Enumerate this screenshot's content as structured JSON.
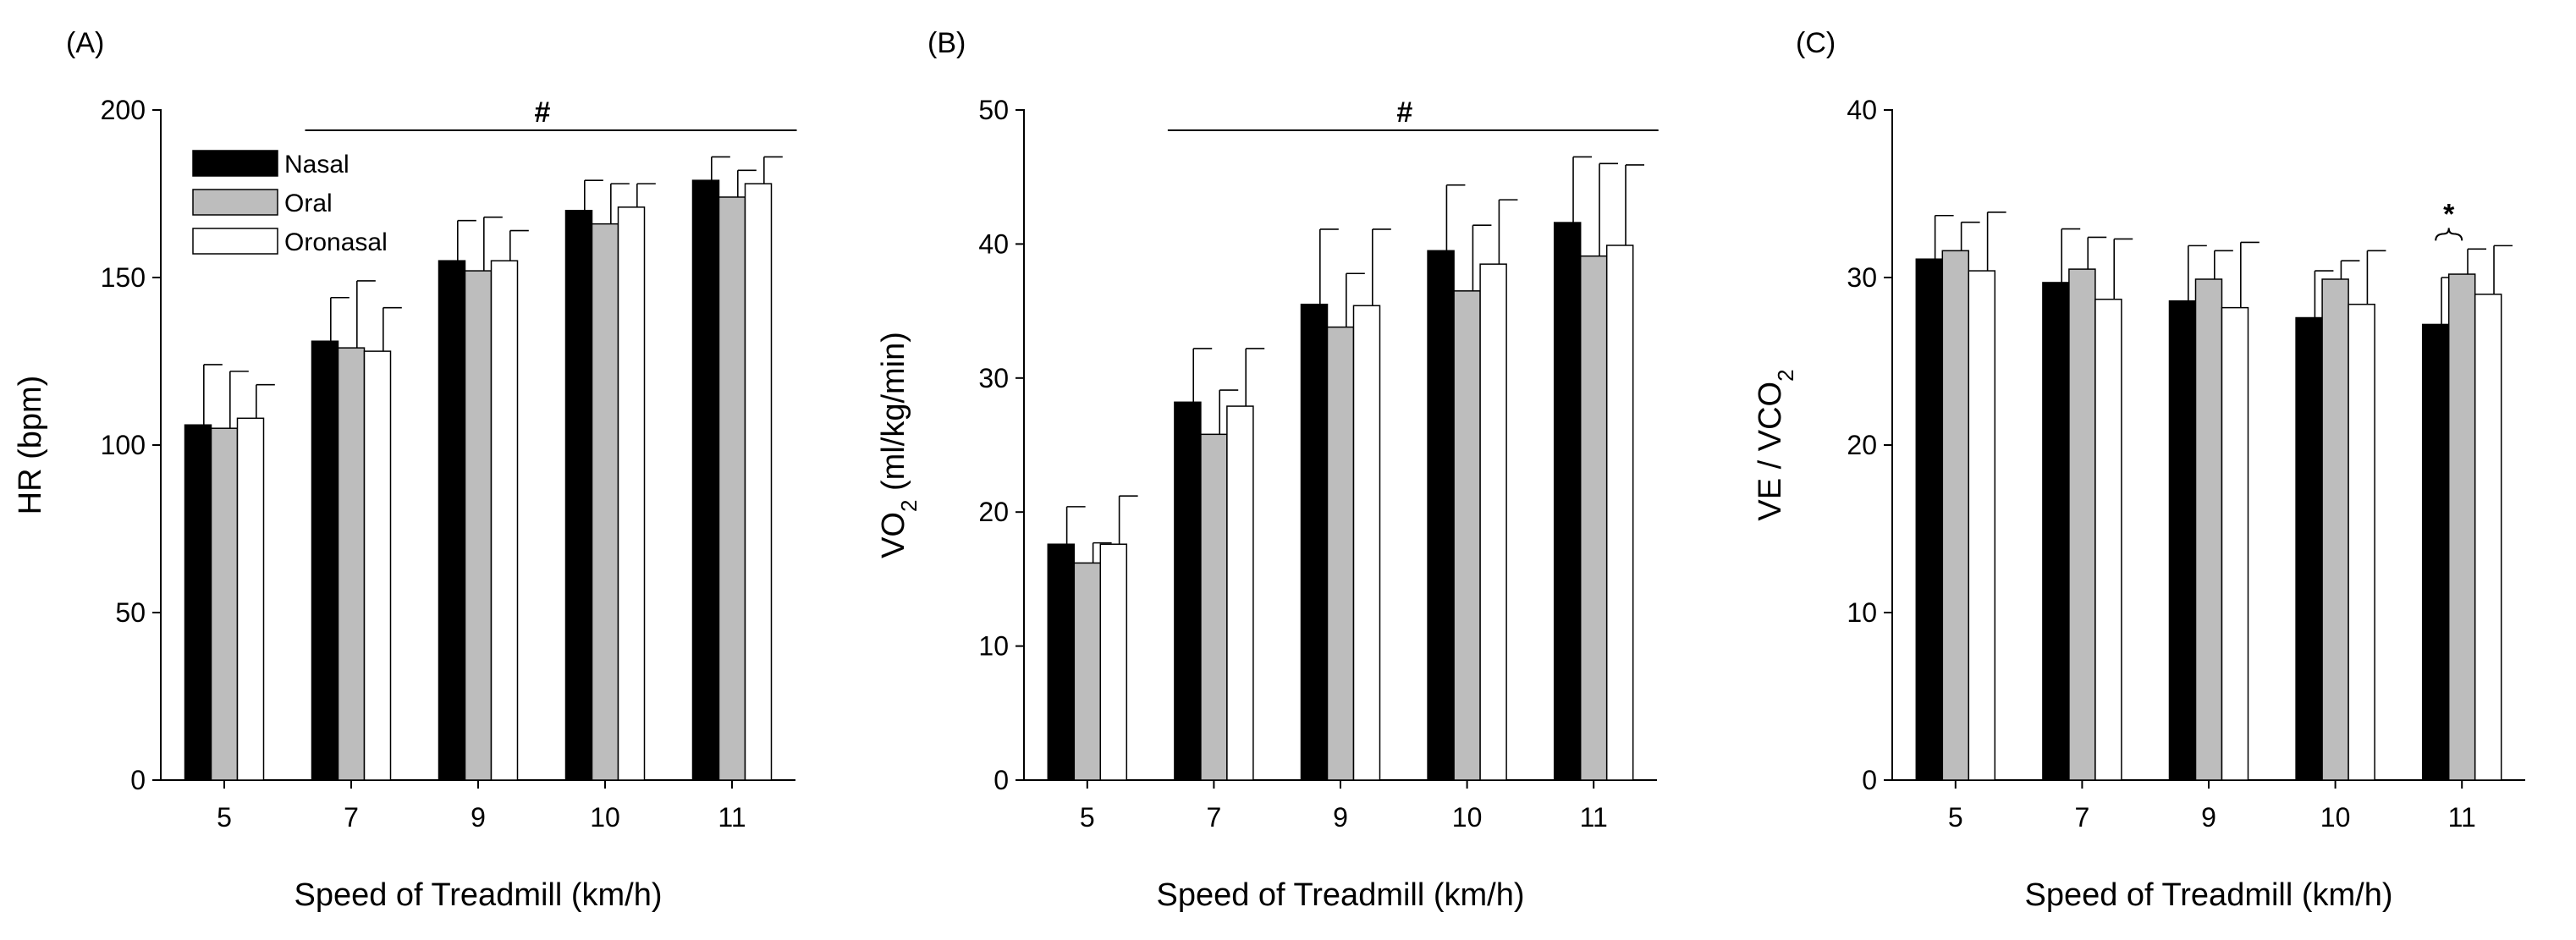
{
  "colors": {
    "nasal": "#000000",
    "oral": "#bdbdbd",
    "oronasal": "#ffffff",
    "axis": "#000000",
    "bar_edge": "#000000"
  },
  "legend": [
    "Nasal",
    "Oral",
    "Oronasal"
  ],
  "chart_data": [
    {
      "type": "bar",
      "panel": "(A)",
      "xlabel": "Speed of Treadmill (km/h)",
      "ylabel": "HR (bpm)",
      "ylabel_main": "HR (bpm)",
      "ylabel_sub": "",
      "ylabel_tail": "",
      "ylim": [
        0,
        200
      ],
      "yticks": [
        0,
        50,
        100,
        150,
        200
      ],
      "categories": [
        "5",
        "7",
        "9",
        "10",
        "11"
      ],
      "series": [
        {
          "name": "Nasal",
          "values": [
            106,
            131,
            155,
            170,
            179
          ],
          "errors": [
            18,
            13,
            12,
            9,
            7
          ]
        },
        {
          "name": "Oral",
          "values": [
            105,
            129,
            152,
            166,
            174
          ],
          "errors": [
            17,
            20,
            16,
            12,
            8
          ]
        },
        {
          "name": "Oronasal",
          "values": [
            108,
            128,
            155,
            171,
            178
          ],
          "errors": [
            10,
            13,
            9,
            7,
            8
          ]
        }
      ],
      "legend_position": "top-left",
      "annotation": {
        "text": "#",
        "type": "bracket-line",
        "from_category": "7",
        "to_category": "11"
      }
    },
    {
      "type": "bar",
      "panel": "(B)",
      "xlabel": "Speed of Treadmill (km/h)",
      "ylabel": "VO2 (ml/kg/min)",
      "ylabel_main": "VO",
      "ylabel_sub": "2",
      "ylabel_tail": " (ml/kg/min)",
      "ylim": [
        0,
        50
      ],
      "yticks": [
        0,
        10,
        20,
        30,
        40,
        50
      ],
      "categories": [
        "5",
        "7",
        "9",
        "10",
        "11"
      ],
      "series": [
        {
          "name": "Nasal",
          "values": [
            17.6,
            28.2,
            35.5,
            39.5,
            41.6
          ],
          "errors": [
            2.8,
            4.0,
            5.6,
            4.9,
            4.9
          ]
        },
        {
          "name": "Oral",
          "values": [
            16.2,
            25.8,
            33.8,
            36.5,
            39.1
          ],
          "errors": [
            1.5,
            3.3,
            4.0,
            4.9,
            6.9
          ]
        },
        {
          "name": "Oronasal",
          "values": [
            17.6,
            27.9,
            35.4,
            38.5,
            39.9
          ],
          "errors": [
            3.6,
            4.3,
            5.7,
            4.8,
            6.0
          ]
        }
      ],
      "annotation": {
        "text": "#",
        "type": "bracket-line",
        "from_category": "7",
        "to_category": "11"
      }
    },
    {
      "type": "bar",
      "panel": "(C)",
      "xlabel": "Speed of Treadmill (km/h)",
      "ylabel": "VE / VCO2",
      "ylabel_main": "VE / VCO",
      "ylabel_sub": "2",
      "ylabel_tail": "",
      "ylim": [
        0,
        40
      ],
      "yticks": [
        0,
        10,
        20,
        30,
        40
      ],
      "categories": [
        "5",
        "7",
        "9",
        "10",
        "11"
      ],
      "series": [
        {
          "name": "Nasal",
          "values": [
            31.1,
            29.7,
            28.6,
            27.6,
            27.2
          ],
          "errors": [
            2.6,
            3.2,
            3.3,
            2.8,
            2.8
          ]
        },
        {
          "name": "Oral",
          "values": [
            31.6,
            30.5,
            29.9,
            29.9,
            30.2
          ],
          "errors": [
            1.7,
            1.9,
            1.7,
            1.1,
            1.5
          ]
        },
        {
          "name": "Oronasal",
          "values": [
            30.4,
            28.7,
            28.2,
            28.4,
            29.0
          ],
          "errors": [
            3.5,
            3.6,
            3.9,
            3.2,
            2.9
          ]
        }
      ],
      "annotation": {
        "text": "*",
        "type": "brace",
        "category": "11",
        "between": [
          "Nasal",
          "Oral"
        ]
      }
    }
  ]
}
